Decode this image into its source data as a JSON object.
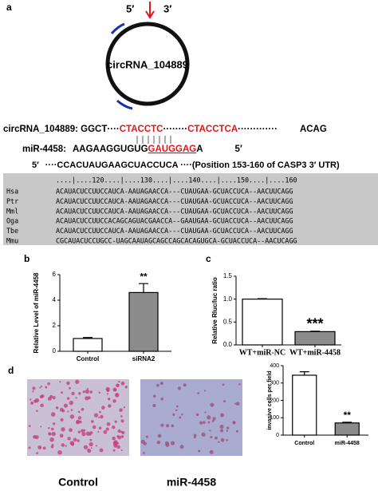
{
  "panel_labels": [
    "a",
    "b",
    "c",
    "d"
  ],
  "panel_a": {
    "circle_label": "circRNA_104889",
    "end_5": "5′",
    "end_3": "3′",
    "circ_line": [
      "circRNA_104889: GGCT",
      "····",
      "CTACCTC",
      "········",
      "CTACCTCA",
      "·············",
      "ACAG"
    ],
    "mir_line": [
      "miR-4458:",
      "AAGAAGGUGUG",
      "GAUGGAG",
      "A",
      "5′"
    ],
    "utr_line": [
      "5′",
      "····CCACUAUGAAGCUACCUCA ····(Position 153-160 of CASP3 3′ UTR)"
    ],
    "alignment": {
      "ruler": "....|....120....|....130....|....140....|....150....|....160",
      "rows": [
        {
          "species": "Hsa",
          "sequence": "ACAUACUCCUUCCAUCA-AAUAGAACCA---CUAUGAA-GCUACCUCA--AACUUCAGG"
        },
        {
          "species": "Ptr",
          "sequence": "ACAUACUCCUUCCAUCA-AAUAGAACCA---CUAUGAA-GCUACCUCA--AACUUCAGG"
        },
        {
          "species": "Mml",
          "sequence": "ACAUACUCCUUCCAUCA-AAUAGAACCA---CUAUGAA-GCUACCUCA--AACUUCAGG"
        },
        {
          "species": "Oga",
          "sequence": "ACAUACUCCUUCCACAGCAGUACGAACCA--GAAUGAA-GCUACCUCA--AACUUCAGG"
        },
        {
          "species": "Tbe",
          "sequence": "ACAUACUCCUUCCAUCA-AAUAGAACCA---CUAUGAA-GCUACCUCA--AACUUCAGG"
        },
        {
          "species": "Mmu",
          "sequence": "CGCAUACUCCUGCC-UAGCAAUAGCAGCCAGCACAGUGCA-GCUACCUCA--AACUCAGG"
        }
      ]
    }
  },
  "chart_data": [
    {
      "type": "bar",
      "ylabel": "Relative Level of miR-4458",
      "categories": [
        "Control",
        "siRNA2"
      ],
      "values": [
        1.0,
        4.6
      ],
      "errors": [
        0.08,
        0.7
      ],
      "colors": [
        "#ffffff",
        "#8c8c8c"
      ],
      "ylim": [
        0,
        6
      ],
      "yticks": [
        0,
        2,
        4,
        6
      ],
      "annotation": "**"
    },
    {
      "type": "bar",
      "ylabel": "Relative Rluc/luc ratio",
      "categories": [
        "WT+miR-NC",
        "WT+miR-4458"
      ],
      "values": [
        1.0,
        0.29
      ],
      "errors": [
        0.01,
        0.01
      ],
      "colors": [
        "#ffffff",
        "#8c8c8c"
      ],
      "ylim": [
        0,
        1.5
      ],
      "yticks": [
        {
          "value": 0,
          "label": "0.0"
        },
        0.5,
        {
          "value": 1,
          "label": "1.0"
        },
        1.5
      ],
      "annotation": "***"
    },
    {
      "type": "bar",
      "ylabel": "invasive cells per field",
      "categories": [
        "Control",
        "miR-4458"
      ],
      "values": [
        345,
        70
      ],
      "errors": [
        20,
        4
      ],
      "colors": [
        "#ffffff",
        "#8c8c8c"
      ],
      "ylim": [
        0,
        400
      ],
      "yticks": [
        0,
        100,
        200,
        300,
        400
      ],
      "annotation": "**"
    }
  ],
  "panel_d_images": [
    "Control",
    "miR-4458"
  ]
}
